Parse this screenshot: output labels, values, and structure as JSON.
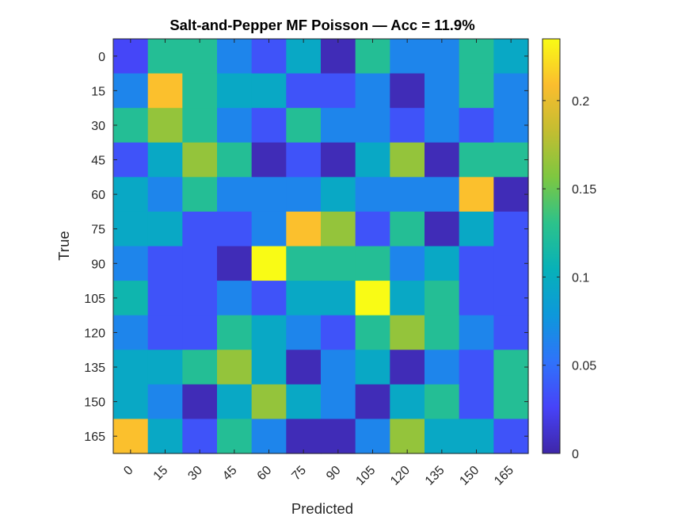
{
  "chart_data": {
    "type": "heatmap",
    "title": "Salt-and-Pepper MF Poisson — Acc = 11.9%",
    "xlabel": "Predicted",
    "ylabel": "True",
    "x_categories": [
      "0",
      "15",
      "30",
      "45",
      "60",
      "75",
      "90",
      "105",
      "120",
      "135",
      "150",
      "165"
    ],
    "y_categories": [
      "0",
      "15",
      "30",
      "45",
      "60",
      "75",
      "90",
      "105",
      "120",
      "135",
      "150",
      "165"
    ],
    "values": [
      [
        0.028,
        0.125,
        0.125,
        0.065,
        0.035,
        0.095,
        0.005,
        0.125,
        0.065,
        0.065,
        0.125,
        0.095
      ],
      [
        0.065,
        0.21,
        0.125,
        0.095,
        0.095,
        0.035,
        0.035,
        0.065,
        0.005,
        0.065,
        0.125,
        0.065
      ],
      [
        0.125,
        0.165,
        0.125,
        0.065,
        0.035,
        0.125,
        0.065,
        0.065,
        0.035,
        0.065,
        0.035,
        0.065
      ],
      [
        0.035,
        0.095,
        0.165,
        0.125,
        0.005,
        0.035,
        0.005,
        0.095,
        0.165,
        0.005,
        0.125,
        0.125
      ],
      [
        0.095,
        0.065,
        0.125,
        0.065,
        0.065,
        0.065,
        0.095,
        0.065,
        0.065,
        0.065,
        0.21,
        0.005
      ],
      [
        0.095,
        0.095,
        0.035,
        0.035,
        0.065,
        0.21,
        0.165,
        0.035,
        0.125,
        0.005,
        0.095,
        0.035
      ],
      [
        0.065,
        0.035,
        0.035,
        0.005,
        0.235,
        0.125,
        0.125,
        0.125,
        0.065,
        0.095,
        0.035,
        0.035
      ],
      [
        0.11,
        0.035,
        0.035,
        0.065,
        0.035,
        0.095,
        0.095,
        0.235,
        0.095,
        0.125,
        0.035,
        0.035
      ],
      [
        0.065,
        0.035,
        0.035,
        0.125,
        0.095,
        0.065,
        0.035,
        0.125,
        0.165,
        0.125,
        0.065,
        0.035
      ],
      [
        0.095,
        0.095,
        0.125,
        0.165,
        0.095,
        0.005,
        0.065,
        0.095,
        0.005,
        0.065,
        0.035,
        0.125
      ],
      [
        0.095,
        0.065,
        0.005,
        0.095,
        0.165,
        0.095,
        0.065,
        0.005,
        0.095,
        0.125,
        0.035,
        0.125
      ],
      [
        0.21,
        0.095,
        0.035,
        0.125,
        0.065,
        0.005,
        0.005,
        0.065,
        0.165,
        0.095,
        0.095,
        0.035
      ]
    ],
    "colorbar": {
      "colormap": "parula",
      "range": [
        0,
        0.235
      ],
      "ticks": [
        0,
        0.05,
        0.1,
        0.15,
        0.2
      ],
      "tick_labels": [
        "0",
        "0.05",
        "0.1",
        "0.15",
        "0.2"
      ]
    }
  },
  "colormap_stops": [
    "#3e26a8",
    "#4743f8",
    "#2f73fa",
    "#0d98db",
    "#07b1b8",
    "#2cc28b",
    "#7ec740",
    "#c3bd31",
    "#fbbd2e",
    "#f9fb15"
  ]
}
